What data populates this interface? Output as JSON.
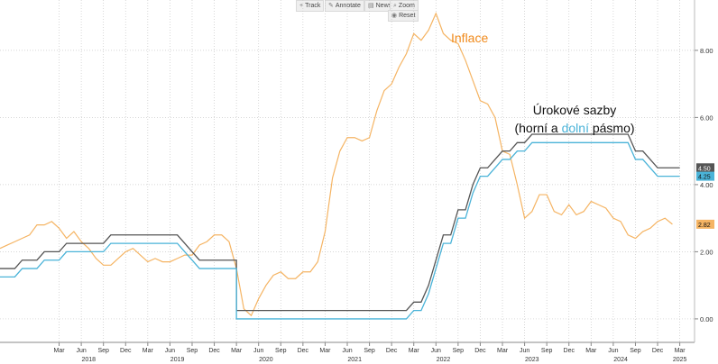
{
  "toolbar": {
    "track": {
      "icon": "crosshair-icon",
      "label": "Track"
    },
    "annotate": {
      "icon": "pencil-icon",
      "label": "Annotate"
    },
    "news": {
      "icon": "news-icon",
      "label": "News"
    },
    "zoom": {
      "icon": "magnifier-icon",
      "label": "Zoom"
    },
    "reset": {
      "icon": "reset-icon",
      "label": "Reset"
    }
  },
  "annotations": {
    "inflation_label": "Inflace",
    "rates_line1": "Úrokové sazby",
    "rates_line2_prefix": "(horní a ",
    "rates_line2_colored": "dolní",
    "rates_line2_suffix": " pásmo)"
  },
  "colors": {
    "inflation": "#f5b463",
    "inflation_text": "#f08a1c",
    "upper": "#555555",
    "lower": "#4ab3d8",
    "grid": "#c8c8c8"
  },
  "chart_data": {
    "type": "line",
    "ylim": [
      -0.7,
      9.5
    ],
    "xlim": [
      "2017-07",
      "2025-05"
    ],
    "y_ticks": [
      "0.00",
      "2.00",
      "4.00",
      "6.00",
      "8.00"
    ],
    "x_ticks": [
      {
        "month": "Mar",
        "date": "2018-03"
      },
      {
        "month": "Jun",
        "date": "2018-06"
      },
      {
        "month": "Sep",
        "date": "2018-09"
      },
      {
        "month": "Dec",
        "date": "2018-12"
      },
      {
        "month": "Mar",
        "date": "2019-03"
      },
      {
        "month": "Jun",
        "date": "2019-06"
      },
      {
        "month": "Sep",
        "date": "2019-09"
      },
      {
        "month": "Dec",
        "date": "2019-12"
      },
      {
        "month": "Mar",
        "date": "2020-03"
      },
      {
        "month": "Jun",
        "date": "2020-06"
      },
      {
        "month": "Sep",
        "date": "2020-09"
      },
      {
        "month": "Dec",
        "date": "2020-12"
      },
      {
        "month": "Mar",
        "date": "2021-03"
      },
      {
        "month": "Jun",
        "date": "2021-06"
      },
      {
        "month": "Sep",
        "date": "2021-09"
      },
      {
        "month": "Dec",
        "date": "2021-12"
      },
      {
        "month": "Mar",
        "date": "2022-03"
      },
      {
        "month": "Jun",
        "date": "2022-06"
      },
      {
        "month": "Sep",
        "date": "2022-09"
      },
      {
        "month": "Dec",
        "date": "2022-12"
      },
      {
        "month": "Mar",
        "date": "2023-03"
      },
      {
        "month": "Jun",
        "date": "2023-06"
      },
      {
        "month": "Sep",
        "date": "2023-09"
      },
      {
        "month": "Dec",
        "date": "2023-12"
      },
      {
        "month": "Mar",
        "date": "2024-03"
      },
      {
        "month": "Jun",
        "date": "2024-06"
      },
      {
        "month": "Sep",
        "date": "2024-09"
      },
      {
        "month": "Dec",
        "date": "2024-12"
      },
      {
        "month": "Mar",
        "date": "2025-03"
      }
    ],
    "years": [
      {
        "label": "2018",
        "date": "2018-07"
      },
      {
        "label": "2019",
        "date": "2019-07"
      },
      {
        "label": "2020",
        "date": "2020-07"
      },
      {
        "label": "2021",
        "date": "2021-07"
      },
      {
        "label": "2022",
        "date": "2022-07"
      },
      {
        "label": "2023",
        "date": "2023-07"
      },
      {
        "label": "2024",
        "date": "2024-07"
      },
      {
        "label": "2025",
        "date": "2025-03"
      }
    ],
    "series": [
      {
        "key": "inflation",
        "last_label": "2.82",
        "points": [
          [
            "2017-07",
            2.1
          ],
          [
            "2017-08",
            2.2
          ],
          [
            "2017-09",
            2.3
          ],
          [
            "2017-10",
            2.4
          ],
          [
            "2017-11",
            2.5
          ],
          [
            "2017-12",
            2.8
          ],
          [
            "2018-01",
            2.8
          ],
          [
            "2018-02",
            2.9
          ],
          [
            "2018-03",
            2.7
          ],
          [
            "2018-04",
            2.4
          ],
          [
            "2018-05",
            2.6
          ],
          [
            "2018-06",
            2.3
          ],
          [
            "2018-07",
            2.1
          ],
          [
            "2018-08",
            1.8
          ],
          [
            "2018-09",
            1.6
          ],
          [
            "2018-10",
            1.6
          ],
          [
            "2018-11",
            1.8
          ],
          [
            "2018-12",
            2.0
          ],
          [
            "2018-13",
            2.1
          ],
          [
            "2019-02",
            1.9
          ],
          [
            "2019-03",
            1.7
          ],
          [
            "2019-04",
            1.8
          ],
          [
            "2019-05",
            1.7
          ],
          [
            "2019-06",
            1.7
          ],
          [
            "2019-07",
            1.8
          ],
          [
            "2019-08",
            1.9
          ],
          [
            "2019-09",
            1.9
          ],
          [
            "2019-10",
            2.2
          ],
          [
            "2019-11",
            2.3
          ],
          [
            "2019-12",
            2.5
          ],
          [
            "2020-01",
            2.5
          ],
          [
            "2020-02",
            2.3
          ],
          [
            "2020-03",
            1.5
          ],
          [
            "2020-04",
            0.3
          ],
          [
            "2020-05",
            0.1
          ],
          [
            "2020-06",
            0.6
          ],
          [
            "2020-07",
            1.0
          ],
          [
            "2020-08",
            1.3
          ],
          [
            "2020-09",
            1.4
          ],
          [
            "2020-10",
            1.2
          ],
          [
            "2020-11",
            1.2
          ],
          [
            "2020-12",
            1.4
          ],
          [
            "2021-01",
            1.4
          ],
          [
            "2021-02",
            1.7
          ],
          [
            "2021-03",
            2.6
          ],
          [
            "2021-04",
            4.2
          ],
          [
            "2021-05",
            5.0
          ],
          [
            "2021-06",
            5.4
          ],
          [
            "2021-07",
            5.4
          ],
          [
            "2021-08",
            5.3
          ],
          [
            "2021-09",
            5.4
          ],
          [
            "2021-10",
            6.2
          ],
          [
            "2021-11",
            6.8
          ],
          [
            "2021-12",
            7.0
          ],
          [
            "2022-01",
            7.5
          ],
          [
            "2022-02",
            7.9
          ],
          [
            "2022-03",
            8.5
          ],
          [
            "2022-04",
            8.3
          ],
          [
            "2022-05",
            8.6
          ],
          [
            "2022-06",
            9.1
          ],
          [
            "2022-07",
            8.5
          ],
          [
            "2022-08",
            8.3
          ],
          [
            "2022-09",
            8.2
          ],
          [
            "2022-10",
            7.7
          ],
          [
            "2022-11",
            7.1
          ],
          [
            "2022-12",
            6.5
          ],
          [
            "2023-01",
            6.4
          ],
          [
            "2023-02",
            6.0
          ],
          [
            "2023-03",
            5.0
          ],
          [
            "2023-04",
            4.9
          ],
          [
            "2023-05",
            4.0
          ],
          [
            "2023-06",
            3.0
          ],
          [
            "2023-07",
            3.2
          ],
          [
            "2023-08",
            3.7
          ],
          [
            "2023-09",
            3.7
          ],
          [
            "2023-10",
            3.2
          ],
          [
            "2023-11",
            3.1
          ],
          [
            "2023-12",
            3.4
          ],
          [
            "2024-01",
            3.1
          ],
          [
            "2024-02",
            3.2
          ],
          [
            "2024-03",
            3.5
          ],
          [
            "2024-04",
            3.4
          ],
          [
            "2024-05",
            3.3
          ],
          [
            "2024-06",
            3.0
          ],
          [
            "2024-07",
            2.9
          ],
          [
            "2024-08",
            2.5
          ],
          [
            "2024-09",
            2.4
          ],
          [
            "2024-10",
            2.6
          ],
          [
            "2024-11",
            2.7
          ],
          [
            "2024-12",
            2.9
          ],
          [
            "2025-01",
            3.0
          ],
          [
            "2025-02",
            2.82
          ]
        ]
      },
      {
        "key": "upper",
        "last_label": "4.50",
        "points": [
          [
            "2017-07",
            1.5
          ],
          [
            "2017-09",
            1.5
          ],
          [
            "2017-10",
            1.75
          ],
          [
            "2017-12",
            1.75
          ],
          [
            "2018-01",
            2.0
          ],
          [
            "2018-03",
            2.0
          ],
          [
            "2018-04",
            2.25
          ],
          [
            "2018-06",
            2.25
          ],
          [
            "2018-07",
            2.25
          ],
          [
            "2018-09",
            2.25
          ],
          [
            "2018-10",
            2.5
          ],
          [
            "2019-07",
            2.5
          ],
          [
            "2019-08",
            2.25
          ],
          [
            "2019-09",
            2.0
          ],
          [
            "2019-10",
            1.75
          ],
          [
            "2020-03",
            1.75
          ],
          [
            "2020-03",
            0.25
          ],
          [
            "2022-02",
            0.25
          ],
          [
            "2022-03",
            0.5
          ],
          [
            "2022-04",
            0.5
          ],
          [
            "2022-05",
            1.0
          ],
          [
            "2022-06",
            1.75
          ],
          [
            "2022-07",
            2.5
          ],
          [
            "2022-08",
            2.5
          ],
          [
            "2022-09",
            3.25
          ],
          [
            "2022-10",
            3.25
          ],
          [
            "2022-11",
            4.0
          ],
          [
            "2022-12",
            4.5
          ],
          [
            "2023-01",
            4.5
          ],
          [
            "2023-02",
            4.75
          ],
          [
            "2023-03",
            5.0
          ],
          [
            "2023-04",
            5.0
          ],
          [
            "2023-05",
            5.25
          ],
          [
            "2023-06",
            5.25
          ],
          [
            "2023-07",
            5.5
          ],
          [
            "2024-08",
            5.5
          ],
          [
            "2024-09",
            5.0
          ],
          [
            "2024-10",
            5.0
          ],
          [
            "2024-11",
            4.75
          ],
          [
            "2024-12",
            4.5
          ],
          [
            "2025-03",
            4.5
          ]
        ]
      },
      {
        "key": "lower",
        "last_label": "4.25",
        "points": [
          [
            "2017-07",
            1.25
          ],
          [
            "2017-09",
            1.25
          ],
          [
            "2017-10",
            1.5
          ],
          [
            "2017-12",
            1.5
          ],
          [
            "2018-01",
            1.75
          ],
          [
            "2018-03",
            1.75
          ],
          [
            "2018-04",
            2.0
          ],
          [
            "2018-06",
            2.0
          ],
          [
            "2018-07",
            2.0
          ],
          [
            "2018-09",
            2.0
          ],
          [
            "2018-10",
            2.25
          ],
          [
            "2019-07",
            2.25
          ],
          [
            "2019-08",
            2.0
          ],
          [
            "2019-09",
            1.75
          ],
          [
            "2019-10",
            1.5
          ],
          [
            "2020-03",
            1.5
          ],
          [
            "2020-03",
            0.0
          ],
          [
            "2022-02",
            0.0
          ],
          [
            "2022-03",
            0.25
          ],
          [
            "2022-04",
            0.25
          ],
          [
            "2022-05",
            0.75
          ],
          [
            "2022-06",
            1.5
          ],
          [
            "2022-07",
            2.25
          ],
          [
            "2022-08",
            2.25
          ],
          [
            "2022-09",
            3.0
          ],
          [
            "2022-10",
            3.0
          ],
          [
            "2022-11",
            3.75
          ],
          [
            "2022-12",
            4.25
          ],
          [
            "2023-01",
            4.25
          ],
          [
            "2023-02",
            4.5
          ],
          [
            "2023-03",
            4.75
          ],
          [
            "2023-04",
            4.75
          ],
          [
            "2023-05",
            5.0
          ],
          [
            "2023-06",
            5.0
          ],
          [
            "2023-07",
            5.25
          ],
          [
            "2024-08",
            5.25
          ],
          [
            "2024-09",
            4.75
          ],
          [
            "2024-10",
            4.75
          ],
          [
            "2024-11",
            4.5
          ],
          [
            "2024-12",
            4.25
          ],
          [
            "2025-03",
            4.25
          ]
        ]
      }
    ]
  }
}
